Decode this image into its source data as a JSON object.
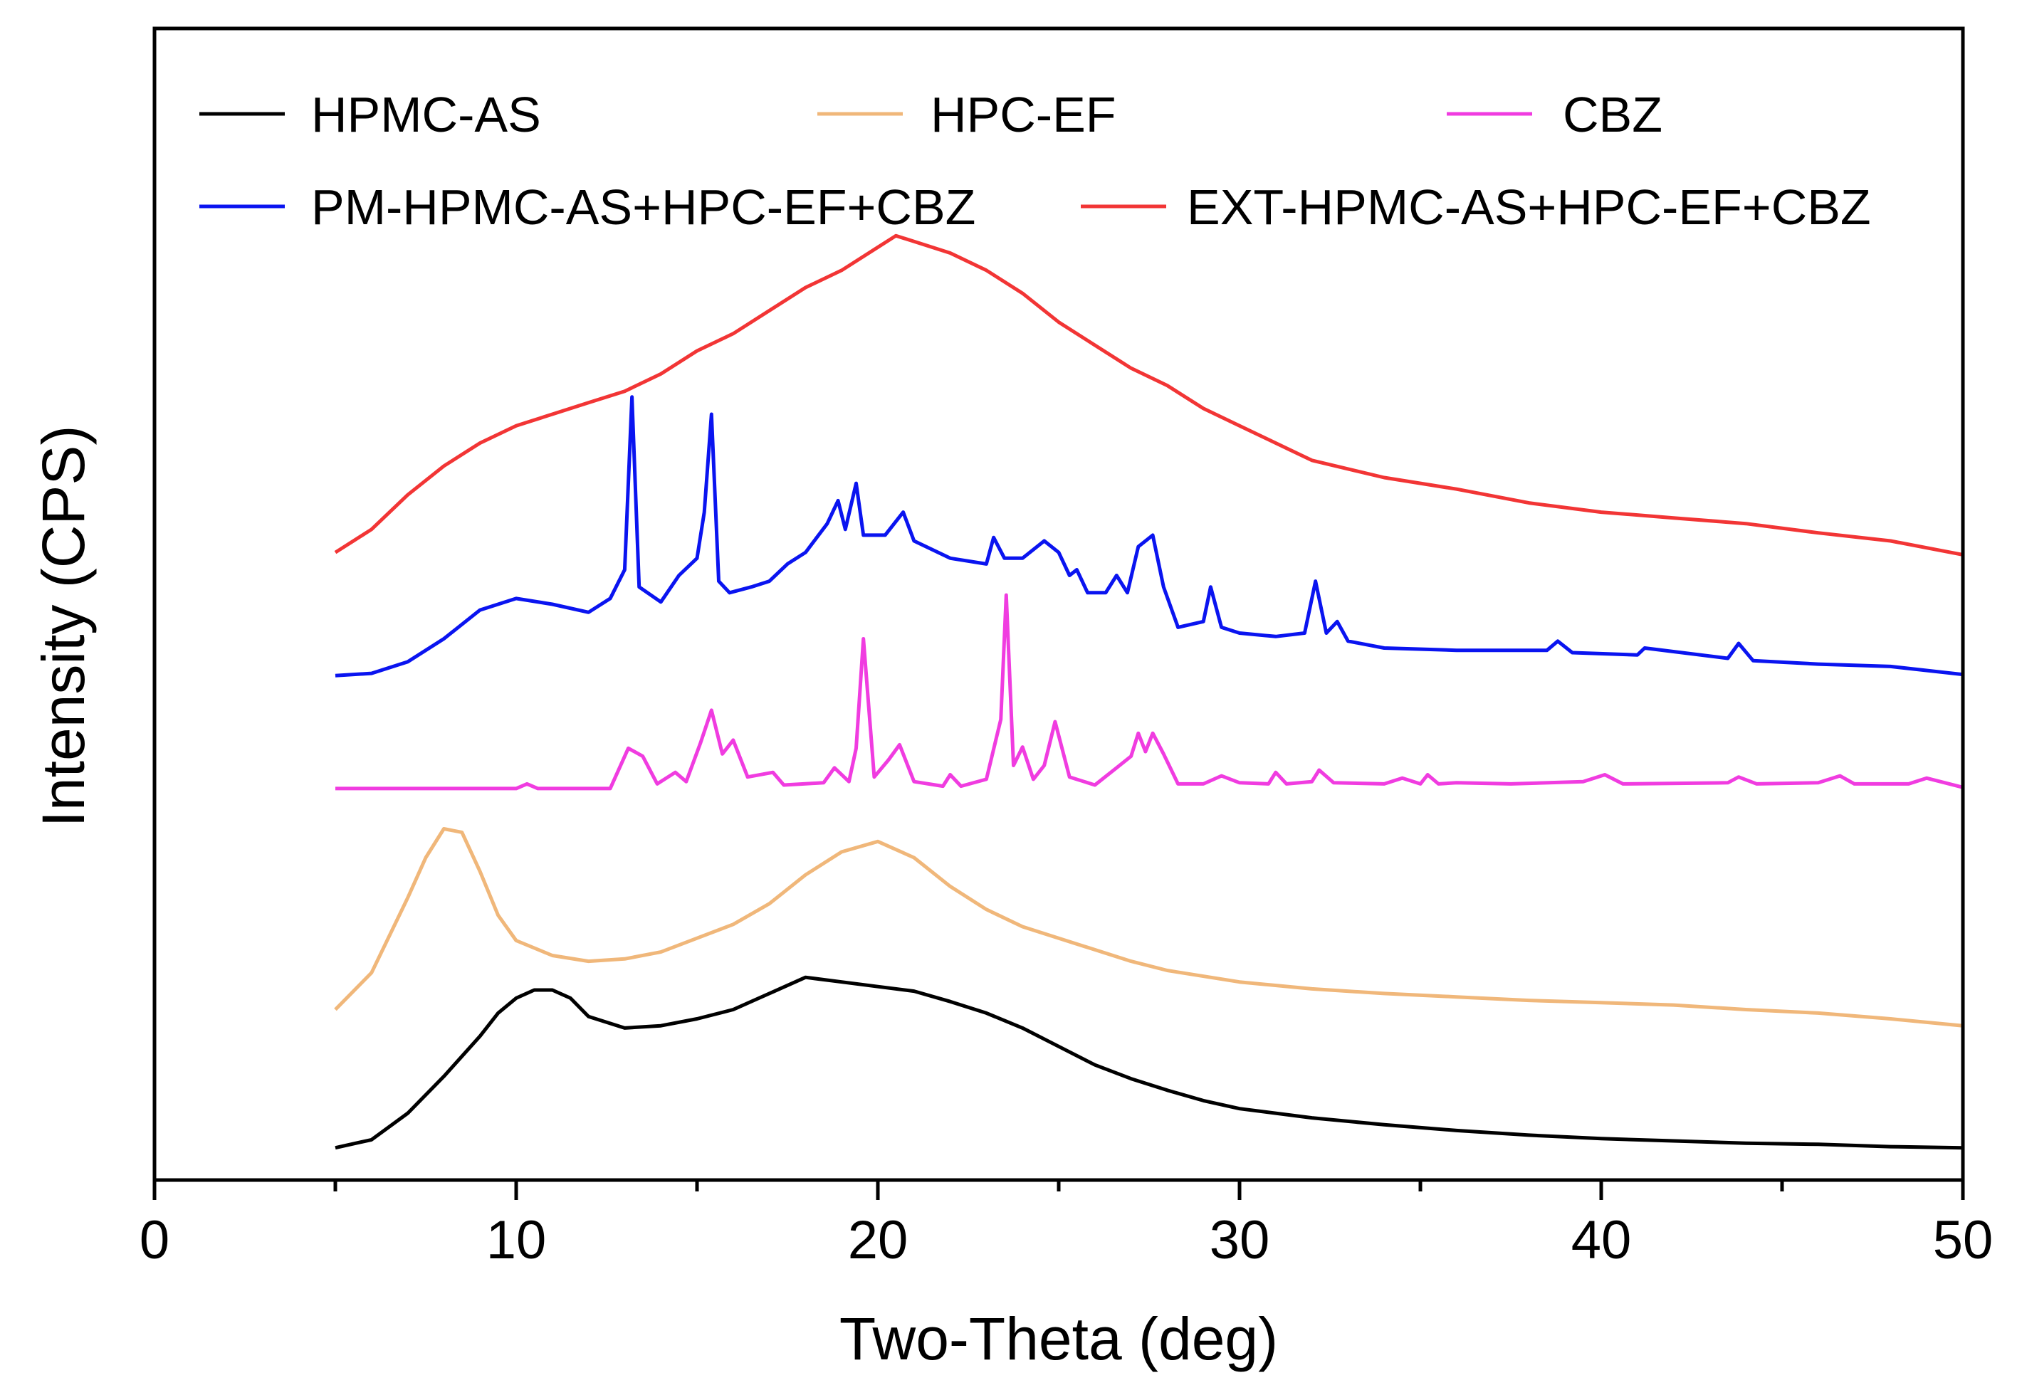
{
  "chart_data": {
    "type": "line",
    "title": "",
    "xlabel": "Two-Theta (deg)",
    "ylabel": "Intensity (CPS)",
    "xlim": [
      0,
      50
    ],
    "ylim": [
      0,
      100
    ],
    "xticks": [
      0,
      10,
      20,
      30,
      40,
      50
    ],
    "y_tick_labels_shown": false,
    "grid": false,
    "legend_position": "top",
    "series": [
      {
        "name": "HPMC-AS",
        "color": "#000000",
        "x": [
          5,
          6,
          7,
          8,
          9,
          9.5,
          10,
          10.5,
          11,
          11.5,
          12,
          13,
          14,
          15,
          16,
          17,
          18,
          19,
          20,
          21,
          22,
          23,
          24,
          25,
          26,
          27,
          28,
          29,
          30,
          32,
          34,
          36,
          38,
          40,
          42,
          44,
          46,
          48,
          50
        ],
        "y": [
          2.8,
          3.5,
          5.8,
          9.0,
          12.5,
          14.5,
          15.8,
          16.5,
          16.5,
          15.8,
          14.2,
          13.2,
          13.4,
          14.0,
          14.8,
          16.2,
          17.6,
          17.2,
          16.8,
          16.4,
          15.5,
          14.5,
          13.2,
          11.6,
          10.0,
          8.8,
          7.8,
          6.9,
          6.2,
          5.4,
          4.8,
          4.3,
          3.9,
          3.6,
          3.4,
          3.2,
          3.1,
          2.9,
          2.8
        ]
      },
      {
        "name": "HPC-EF",
        "color": "#f0b77a",
        "x": [
          5,
          6,
          7,
          7.5,
          8,
          8.5,
          9,
          9.5,
          10,
          11,
          12,
          13,
          14,
          15,
          16,
          17,
          18,
          19,
          20,
          21,
          22,
          23,
          24,
          25,
          26,
          27,
          28,
          30,
          32,
          34,
          36,
          38,
          40,
          42,
          44,
          46,
          48,
          50
        ],
        "y": [
          14.8,
          18.0,
          24.5,
          28.0,
          30.5,
          30.2,
          26.8,
          23.0,
          20.8,
          19.5,
          19.0,
          19.2,
          19.8,
          21.0,
          22.2,
          24.0,
          26.5,
          28.5,
          29.4,
          28.0,
          25.5,
          23.5,
          22.0,
          21.0,
          20.0,
          19.0,
          18.2,
          17.2,
          16.6,
          16.2,
          15.9,
          15.6,
          15.4,
          15.2,
          14.8,
          14.5,
          14.0,
          13.4
        ]
      },
      {
        "name": "CBZ",
        "color": "#f03ce0",
        "x": [
          5,
          10,
          10.3,
          10.6,
          12.6,
          13.1,
          13.5,
          13.9,
          14.4,
          14.7,
          15.1,
          15.4,
          15.7,
          16.0,
          16.4,
          17.1,
          17.4,
          18.5,
          18.8,
          19.2,
          19.4,
          19.6,
          19.9,
          20.3,
          20.6,
          21.0,
          21.8,
          22.0,
          22.3,
          23.0,
          23.4,
          23.55,
          23.75,
          24.0,
          24.3,
          24.6,
          24.9,
          25.3,
          26.0,
          26.6,
          27.0,
          27.2,
          27.4,
          27.6,
          27.9,
          28.3,
          29.0,
          29.5,
          30.0,
          30.8,
          31.0,
          31.3,
          32.0,
          32.2,
          32.6,
          34.0,
          34.5,
          35.0,
          35.2,
          35.5,
          36.0,
          37.5,
          39.5,
          40.1,
          40.6,
          43.5,
          43.8,
          44.3,
          46.0,
          46.6,
          47.0,
          48.5,
          49.0,
          50
        ],
        "y": [
          34.0,
          34.0,
          34.4,
          34.0,
          34.0,
          37.5,
          36.8,
          34.4,
          35.4,
          34.6,
          38.0,
          40.8,
          37.0,
          38.2,
          35.0,
          35.4,
          34.3,
          34.5,
          35.8,
          34.6,
          37.5,
          47.0,
          35.0,
          36.5,
          37.8,
          34.6,
          34.2,
          35.2,
          34.2,
          34.8,
          40.0,
          50.8,
          36.0,
          37.6,
          34.8,
          36.0,
          39.8,
          35.0,
          34.3,
          35.8,
          36.8,
          38.8,
          37.2,
          38.8,
          37.0,
          34.4,
          34.4,
          35.1,
          34.5,
          34.4,
          35.4,
          34.4,
          34.6,
          35.6,
          34.5,
          34.4,
          34.9,
          34.4,
          35.2,
          34.4,
          34.5,
          34.4,
          34.6,
          35.2,
          34.4,
          34.5,
          35.0,
          34.4,
          34.5,
          35.1,
          34.4,
          34.4,
          34.9,
          34.1
        ]
      },
      {
        "name": "PM-HPMC-AS+HPC-EF+CBZ",
        "color": "#0a14f0",
        "x": [
          5,
          6,
          7,
          8,
          9,
          10,
          11,
          12,
          12.6,
          13.0,
          13.2,
          13.4,
          14.0,
          14.5,
          15.0,
          15.2,
          15.4,
          15.6,
          15.9,
          16.5,
          17.0,
          17.5,
          18.0,
          18.6,
          18.9,
          19.1,
          19.4,
          19.6,
          19.8,
          20.2,
          20.7,
          21.0,
          22.0,
          23.0,
          23.2,
          23.5,
          24.0,
          24.6,
          25.0,
          25.3,
          25.5,
          25.8,
          26.3,
          26.6,
          26.9,
          27.2,
          27.6,
          27.9,
          28.3,
          29.0,
          29.2,
          29.5,
          30.0,
          31.0,
          31.8,
          32.1,
          32.4,
          32.7,
          33.0,
          34.0,
          36.0,
          38.5,
          38.8,
          39.2,
          41.0,
          41.2,
          43.5,
          43.8,
          44.2,
          46.0,
          48.0,
          50
        ],
        "y": [
          43.8,
          44.0,
          45.0,
          47.0,
          49.5,
          50.5,
          50.0,
          49.3,
          50.5,
          53.0,
          68.0,
          51.5,
          50.2,
          52.5,
          54.0,
          58.0,
          66.5,
          52.0,
          51.0,
          51.5,
          52.0,
          53.5,
          54.5,
          57.0,
          59.0,
          56.5,
          60.5,
          56.0,
          56.0,
          56.0,
          58.0,
          55.5,
          54.0,
          53.5,
          55.8,
          54.0,
          54.0,
          55.5,
          54.5,
          52.5,
          53.0,
          51.0,
          51.0,
          52.5,
          51.0,
          55.0,
          56.0,
          51.5,
          48.0,
          48.5,
          51.5,
          48.0,
          47.5,
          47.2,
          47.5,
          52.0,
          47.5,
          48.5,
          46.8,
          46.2,
          46.0,
          46.0,
          46.8,
          45.8,
          45.6,
          46.2,
          45.3,
          46.6,
          45.1,
          44.8,
          44.6,
          43.9
        ]
      },
      {
        "name": "EXT-HPMC-AS+HPC-EF+CBZ",
        "color": "#f23535",
        "x": [
          5,
          6,
          7,
          8,
          9,
          10,
          11,
          12,
          13,
          14,
          15,
          16,
          17,
          18,
          19,
          20,
          20.5,
          21,
          22,
          23,
          24,
          25,
          26,
          27,
          28,
          29,
          30,
          31,
          32,
          34,
          36,
          38,
          40,
          42,
          44,
          46,
          48,
          50
        ],
        "y": [
          54.5,
          56.5,
          59.5,
          62.0,
          64.0,
          65.5,
          66.5,
          67.5,
          68.5,
          70.0,
          72.0,
          73.5,
          75.5,
          77.5,
          79.0,
          81.0,
          82.0,
          81.5,
          80.5,
          79.0,
          77.0,
          74.5,
          72.5,
          70.5,
          69.0,
          67.0,
          65.5,
          64.0,
          62.5,
          61.0,
          60.0,
          58.8,
          58.0,
          57.5,
          57.0,
          56.2,
          55.5,
          54.3
        ]
      }
    ]
  }
}
